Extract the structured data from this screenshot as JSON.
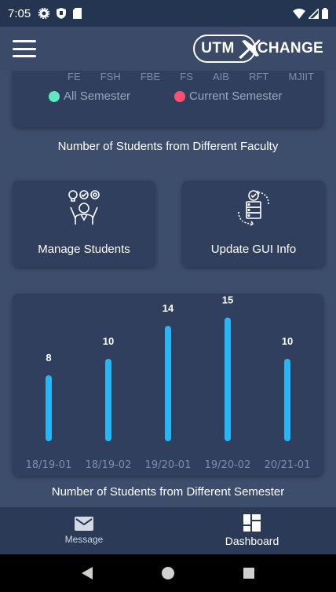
{
  "status_bar": {
    "time": "7:05"
  },
  "app_bar": {
    "logo_left": "UTM",
    "logo_right": "CHANGE"
  },
  "faculty_card": {
    "faculties": [
      "FE",
      "FSH",
      "FBE",
      "FS",
      "AIB",
      "RFT",
      "MJIIT"
    ],
    "legend": [
      {
        "label": "All Semester",
        "color": "#5ee8c4"
      },
      {
        "label": "Current Semester",
        "color": "#ff4f70"
      }
    ]
  },
  "captions": {
    "faculty": "Number of Students from Different Faculty",
    "semester": "Number of Students from Different Semester"
  },
  "actions": {
    "manage": "Manage Students",
    "update": "Update GUI Info"
  },
  "chart_data": {
    "type": "bar",
    "categories": [
      "18/19-01",
      "18/19-02",
      "19/20-01",
      "19/20-02",
      "20/21-01"
    ],
    "values": [
      8,
      10,
      14,
      15,
      10
    ],
    "ylim": [
      0,
      16
    ],
    "color": "#29b6f6",
    "title": "Number of Students from Different Semester"
  },
  "bottom_nav": {
    "message": "Message",
    "dashboard": "Dashboard"
  }
}
